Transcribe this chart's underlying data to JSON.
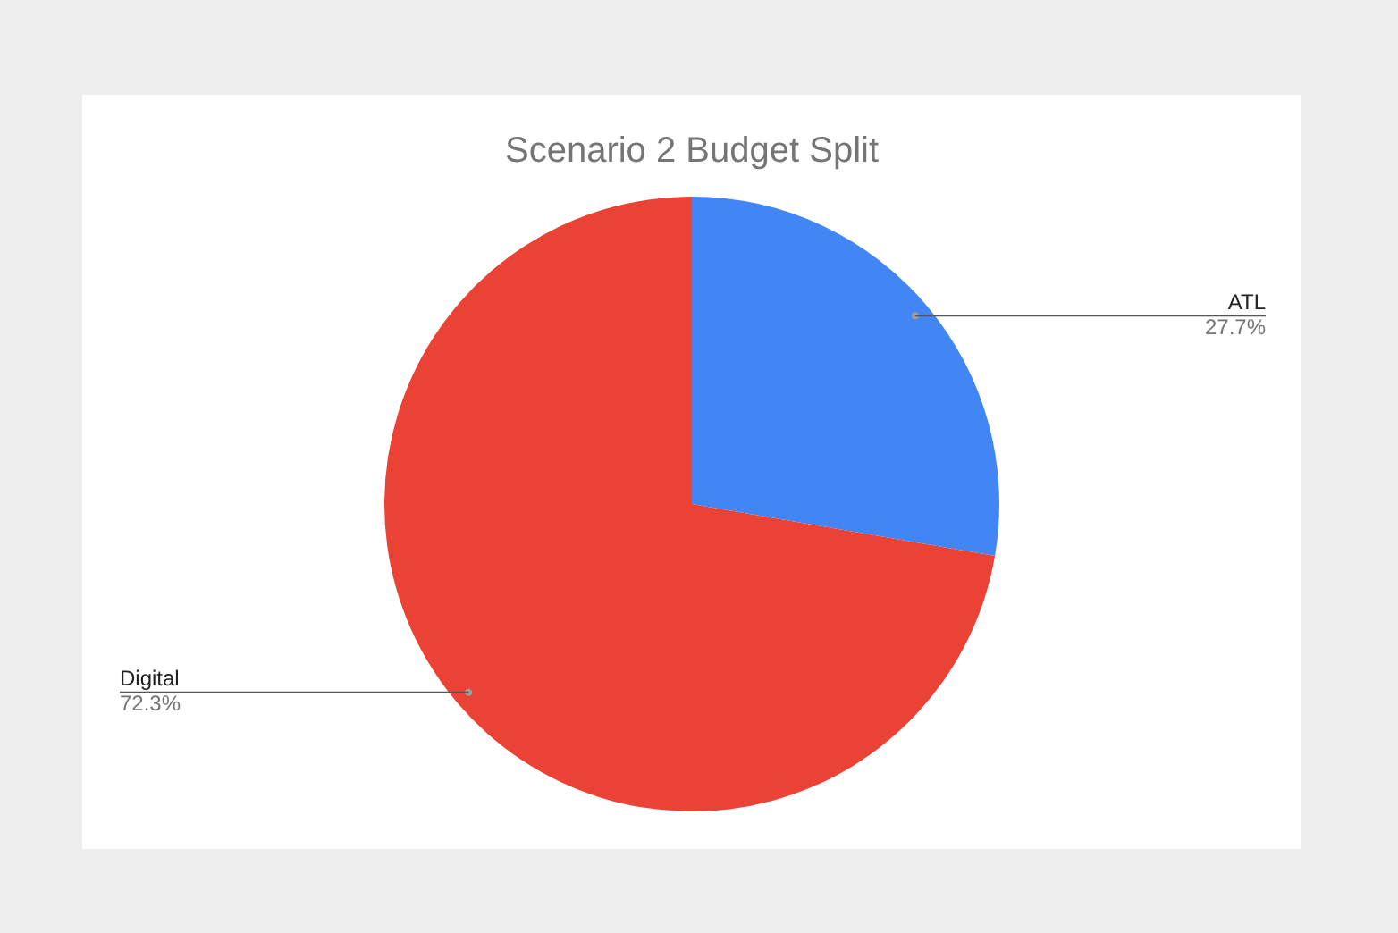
{
  "chart_data": {
    "type": "pie",
    "title": "Scenario 2 Budget Split",
    "categories": [
      "ATL",
      "Digital"
    ],
    "values": [
      27.7,
      72.3
    ],
    "colors": [
      "#4285f4",
      "#ea4335"
    ],
    "value_labels": [
      "27.7%",
      "72.3%"
    ],
    "legend": false
  }
}
